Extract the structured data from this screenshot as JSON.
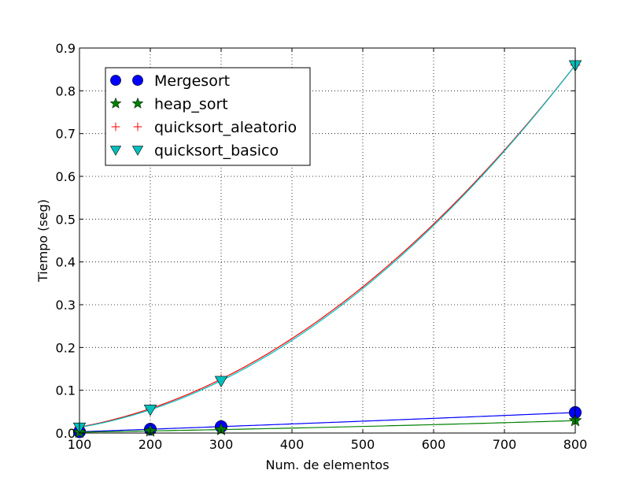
{
  "chart_data": {
    "type": "line",
    "title": "",
    "xlabel": "Num. de elementos",
    "ylabel": "Tiempo (seg)",
    "xlim": [
      100,
      800
    ],
    "ylim": [
      0,
      0.9
    ],
    "xticks": [
      100,
      200,
      300,
      400,
      500,
      600,
      700,
      800
    ],
    "yticks": [
      0.0,
      0.1,
      0.2,
      0.3,
      0.4,
      0.5,
      0.6,
      0.7,
      0.8,
      0.9
    ],
    "xtick_labels": [
      "100",
      "200",
      "300",
      "400",
      "500",
      "600",
      "700",
      "800"
    ],
    "ytick_labels": [
      "0.0",
      "0.1",
      "0.2",
      "0.3",
      "0.4",
      "0.5",
      "0.6",
      "0.7",
      "0.8",
      "0.9"
    ],
    "grid": true,
    "legend_position": "top-left",
    "series": [
      {
        "name": "Mergesort",
        "color": "#0000ff",
        "marker": "circle",
        "x": [
          100,
          200,
          300,
          800
        ],
        "y": [
          0.003,
          0.009,
          0.015,
          0.048
        ]
      },
      {
        "name": "heap_sort",
        "color": "#008000",
        "marker": "star",
        "x": [
          100,
          200,
          300,
          800
        ],
        "y": [
          0.002,
          0.005,
          0.008,
          0.029
        ]
      },
      {
        "name": "quicksort_aleatorio",
        "color": "#ff0000",
        "marker": "plus",
        "x": [
          100,
          200,
          300,
          800
        ],
        "y": [
          0.014,
          0.057,
          0.126,
          0.86
        ]
      },
      {
        "name": "quicksort_basico",
        "color": "#00bfbf",
        "marker": "triangle-down",
        "x": [
          100,
          200,
          300,
          800
        ],
        "y": [
          0.013,
          0.055,
          0.122,
          0.86
        ]
      }
    ]
  }
}
